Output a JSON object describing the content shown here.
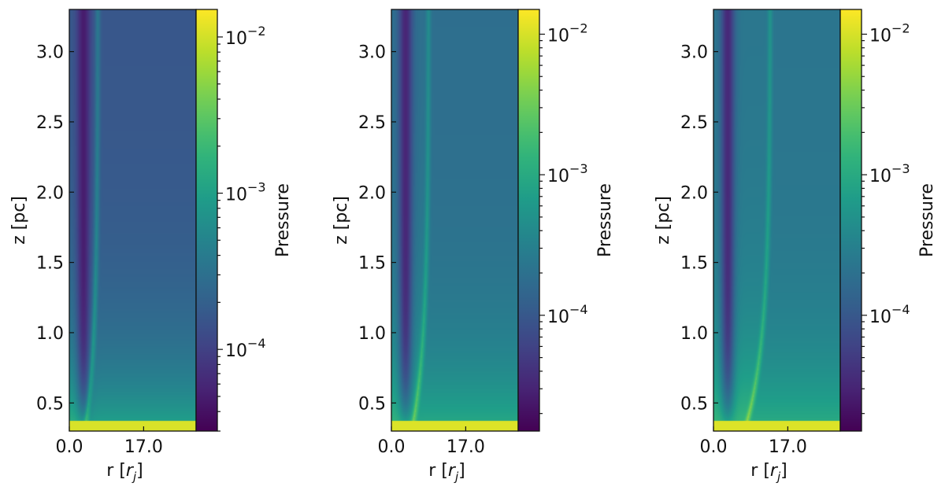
{
  "chart_data": [
    {
      "type": "heatmap",
      "xlabel_main": "r [",
      "xlabel_italic": "r",
      "xlabel_sub": "j",
      "xlabel_close": "]",
      "ylabel": "z [pc]",
      "x_ticks": [
        0.0,
        17.0
      ],
      "x_tick_labels": [
        "0.0",
        "17.0"
      ],
      "xlim": [
        0.0,
        29.0
      ],
      "y_ticks": [
        0.5,
        1.0,
        1.5,
        2.0,
        2.5,
        3.0
      ],
      "y_tick_labels": [
        "0.5",
        "1.0",
        "1.5",
        "2.0",
        "2.5",
        "3.0"
      ],
      "ylim": [
        0.3,
        3.3
      ],
      "colorbar": {
        "label": "Pressure",
        "scale": "log",
        "range": [
          3e-05,
          0.015
        ],
        "major_ticks": [
          0.0001,
          0.001,
          0.01
        ],
        "major_base": "10",
        "major_exponents": [
          "−4",
          "−3",
          "−2"
        ]
      },
      "field": {
        "ambient_pressure": 0.00016,
        "base_pressure": 0.0012,
        "jet_core_pressure": 4.5e-05,
        "shell_radius": 6.5,
        "shell_pressure": 0.00045
      }
    },
    {
      "type": "heatmap",
      "xlabel_main": "r [",
      "xlabel_italic": "r",
      "xlabel_sub": "j",
      "xlabel_close": "]",
      "ylabel": "z [pc]",
      "x_ticks": [
        0.0,
        17.0
      ],
      "x_tick_labels": [
        "0.0",
        "17.0"
      ],
      "xlim": [
        0.0,
        29.0
      ],
      "y_ticks": [
        0.5,
        1.0,
        1.5,
        2.0,
        2.5,
        3.0
      ],
      "y_tick_labels": [
        "0.5",
        "1.0",
        "1.5",
        "2.0",
        "2.5",
        "3.0"
      ],
      "ylim": [
        0.3,
        3.3
      ],
      "colorbar": {
        "label": "Pressure",
        "scale": "log",
        "range": [
          1.5e-05,
          0.015
        ],
        "major_ticks": [
          0.0001,
          0.001,
          0.01
        ],
        "major_base": "10",
        "major_exponents": [
          "−4",
          "−3",
          "−2"
        ]
      },
      "field": {
        "ambient_pressure": 0.00018,
        "base_pressure": 0.0011,
        "jet_core_pressure": 2.8e-05,
        "shell_radius": 8.5,
        "shell_pressure": 0.00055
      }
    },
    {
      "type": "heatmap",
      "xlabel_main": "r [",
      "xlabel_italic": "r",
      "xlabel_sub": "j",
      "xlabel_close": "]",
      "ylabel": "z [pc]",
      "x_ticks": [
        0.0,
        17.0
      ],
      "x_tick_labels": [
        "0.0",
        "17.0"
      ],
      "xlim": [
        0.0,
        29.0
      ],
      "y_ticks": [
        0.5,
        1.0,
        1.5,
        2.0,
        2.5,
        3.0
      ],
      "y_tick_labels": [
        "0.5",
        "1.0",
        "1.5",
        "2.0",
        "2.5",
        "3.0"
      ],
      "ylim": [
        0.3,
        3.3
      ],
      "colorbar": {
        "label": "Pressure",
        "scale": "log",
        "range": [
          1.5e-05,
          0.015
        ],
        "major_ticks": [
          0.0001,
          0.001,
          0.01
        ],
        "major_base": "10",
        "major_exponents": [
          "−4",
          "−3",
          "−2"
        ]
      },
      "field": {
        "ambient_pressure": 0.00022,
        "base_pressure": 0.0012,
        "jet_core_pressure": 3e-05,
        "shell_radius": 13.0,
        "shell_pressure": 0.0006
      }
    }
  ]
}
